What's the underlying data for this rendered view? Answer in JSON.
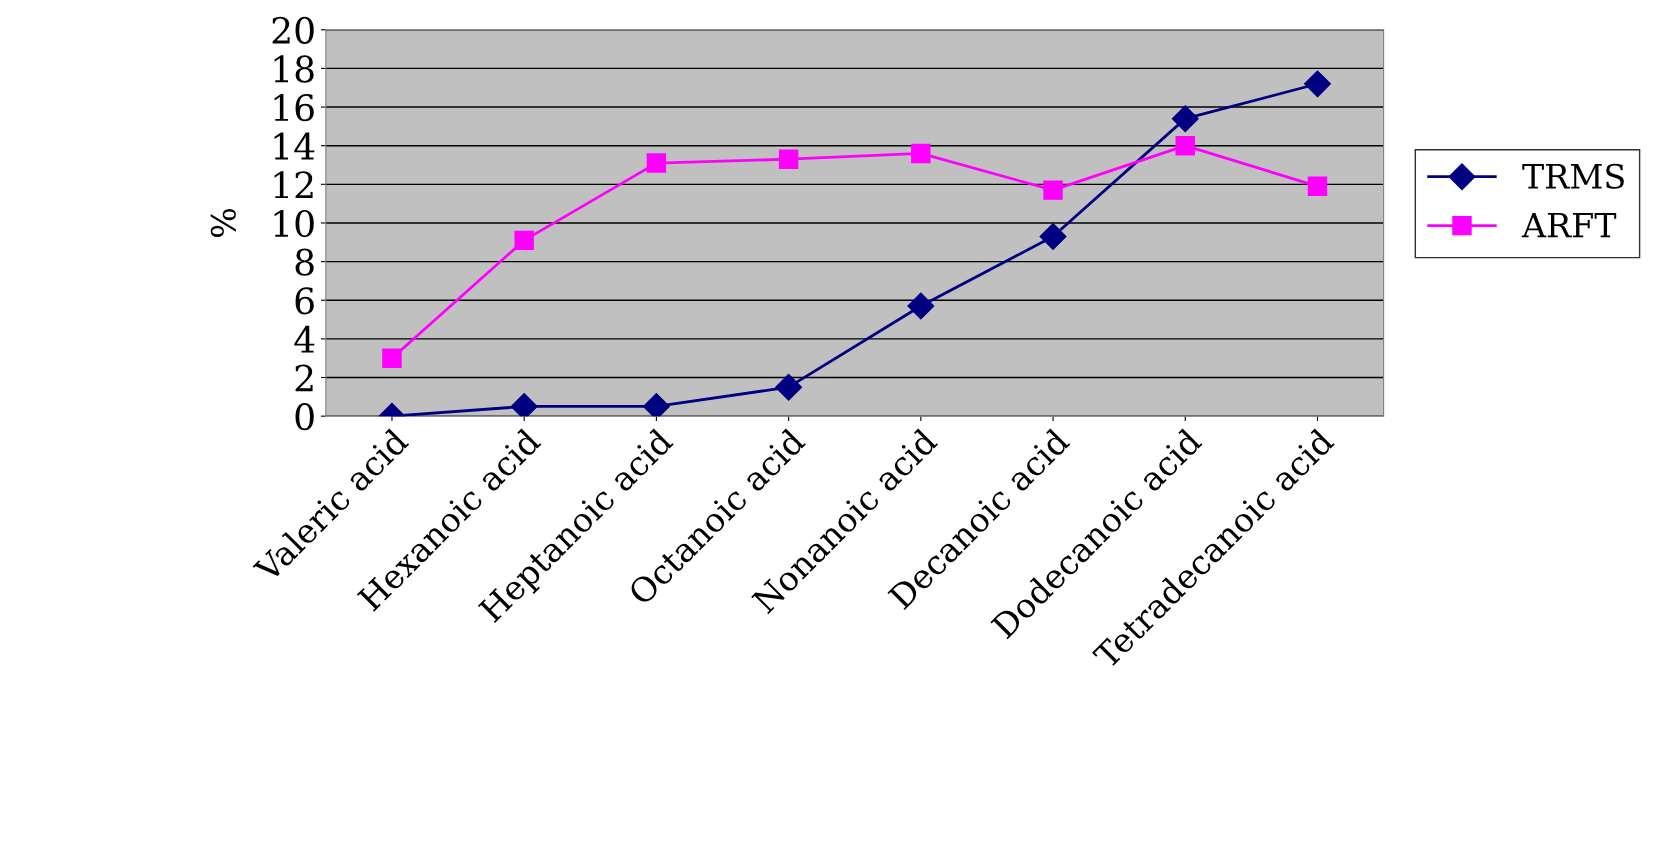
{
  "chart_data": {
    "type": "line",
    "ylabel": "%",
    "categories": [
      "Valeric acid",
      "Hexanoic acid",
      "Heptanoic acid",
      "Octanoic acid",
      "Nonanoic acid",
      "Decanoic acid",
      "Dodecanoic acid",
      "Tetradecanoic acid"
    ],
    "series": [
      {
        "name": "TRMS",
        "color": "#000080",
        "marker": "diamond",
        "values": [
          0,
          0.5,
          0.5,
          1.5,
          5.7,
          9.3,
          15.4,
          17.2
        ]
      },
      {
        "name": "ARFT",
        "color": "#ff00ff",
        "marker": "square",
        "values": [
          3,
          9.1,
          13.1,
          13.3,
          13.6,
          11.7,
          14,
          11.9
        ]
      }
    ],
    "ylim": [
      0,
      20
    ],
    "yticks": [
      0,
      2,
      4,
      6,
      8,
      10,
      12,
      14,
      16,
      18,
      20
    ],
    "grid": "y",
    "legend": "right"
  }
}
